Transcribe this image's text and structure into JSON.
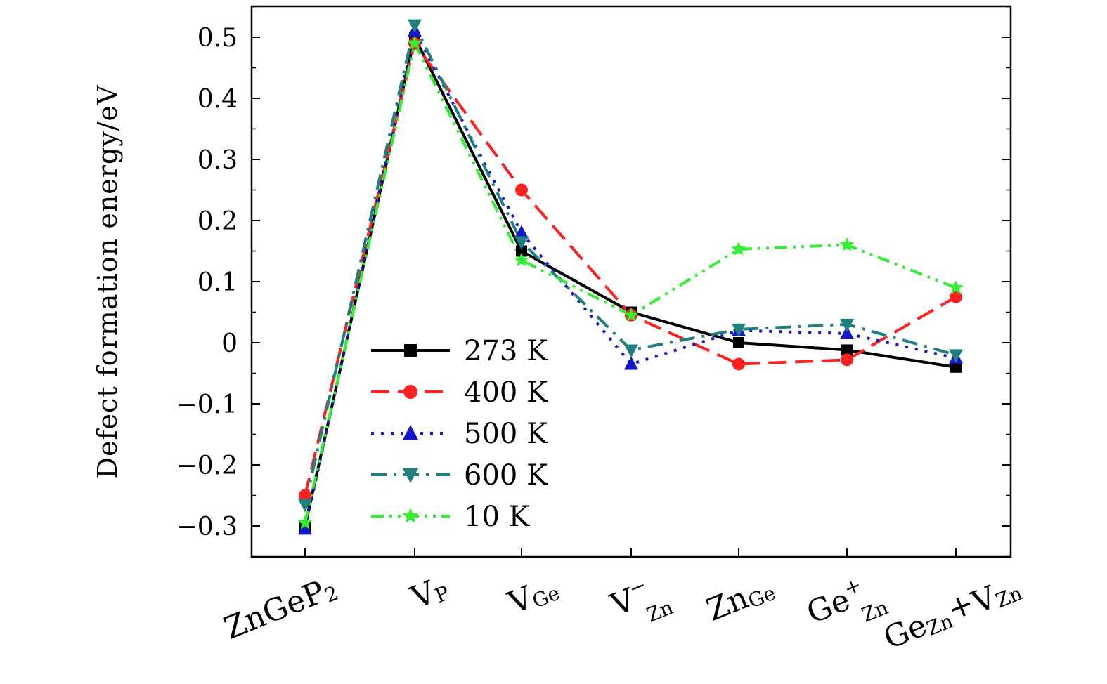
{
  "chart_data": {
    "type": "line",
    "title": "",
    "xlabel": "",
    "ylabel": "Defect formation energy/eV",
    "ylim": [
      -0.35,
      0.55
    ],
    "yticks": [
      {
        "value": 0.5,
        "label": "0.5"
      },
      {
        "value": 0.4,
        "label": "0.4"
      },
      {
        "value": 0.3,
        "label": "0.3"
      },
      {
        "value": 0.2,
        "label": "0.2"
      },
      {
        "value": 0.1,
        "label": "0.1"
      },
      {
        "value": 0,
        "label": "0"
      },
      {
        "value": -0.1,
        "label": "−0.1"
      },
      {
        "value": -0.2,
        "label": "−0.2"
      },
      {
        "value": -0.3,
        "label": "−0.3"
      }
    ],
    "categories": [
      {
        "base": "ZnGeP",
        "sub": "2",
        "sup": ""
      },
      {
        "base": "V",
        "sub": "P",
        "sup": ""
      },
      {
        "base": "V",
        "sub": "Ge",
        "sup": ""
      },
      {
        "base": "V",
        "sub": "Zn",
        "sup": "−"
      },
      {
        "base": "Zn",
        "sub": "Ge",
        "sup": ""
      },
      {
        "base": "Ge",
        "sub": "Zn",
        "sup": "+"
      },
      {
        "base": "Ge",
        "sub": "Zn",
        "sup": "",
        "plus": "+",
        "base2": "V",
        "sub2": "Zn"
      }
    ],
    "legend_position": "lower-left",
    "series": [
      {
        "name": "273 K",
        "color": "#000000",
        "dash": "solid",
        "marker": "square",
        "values": [
          -0.3,
          0.5,
          0.15,
          0.05,
          0.0,
          -0.012,
          -0.04
        ]
      },
      {
        "name": "400 K",
        "color": "#ff2020",
        "dash": "dash",
        "marker": "circle",
        "values": [
          -0.25,
          0.49,
          0.25,
          0.045,
          -0.035,
          -0.028,
          0.075
        ]
      },
      {
        "name": "500 K",
        "color": "#1515cc",
        "dash": "dot",
        "marker": "triangle-up",
        "values": [
          -0.305,
          0.51,
          0.18,
          -0.035,
          0.02,
          0.015,
          -0.025
        ]
      },
      {
        "name": "600 K",
        "color": "#208080",
        "dash": "dashdot",
        "marker": "triangle-down",
        "values": [
          -0.265,
          0.52,
          0.165,
          -0.012,
          0.022,
          0.03,
          -0.02
        ]
      },
      {
        "name": "10 K",
        "color": "#33ee33",
        "dash": "dashdotdot",
        "marker": "star",
        "values": [
          -0.295,
          0.49,
          0.135,
          0.045,
          0.153,
          0.16,
          0.09
        ]
      }
    ]
  }
}
